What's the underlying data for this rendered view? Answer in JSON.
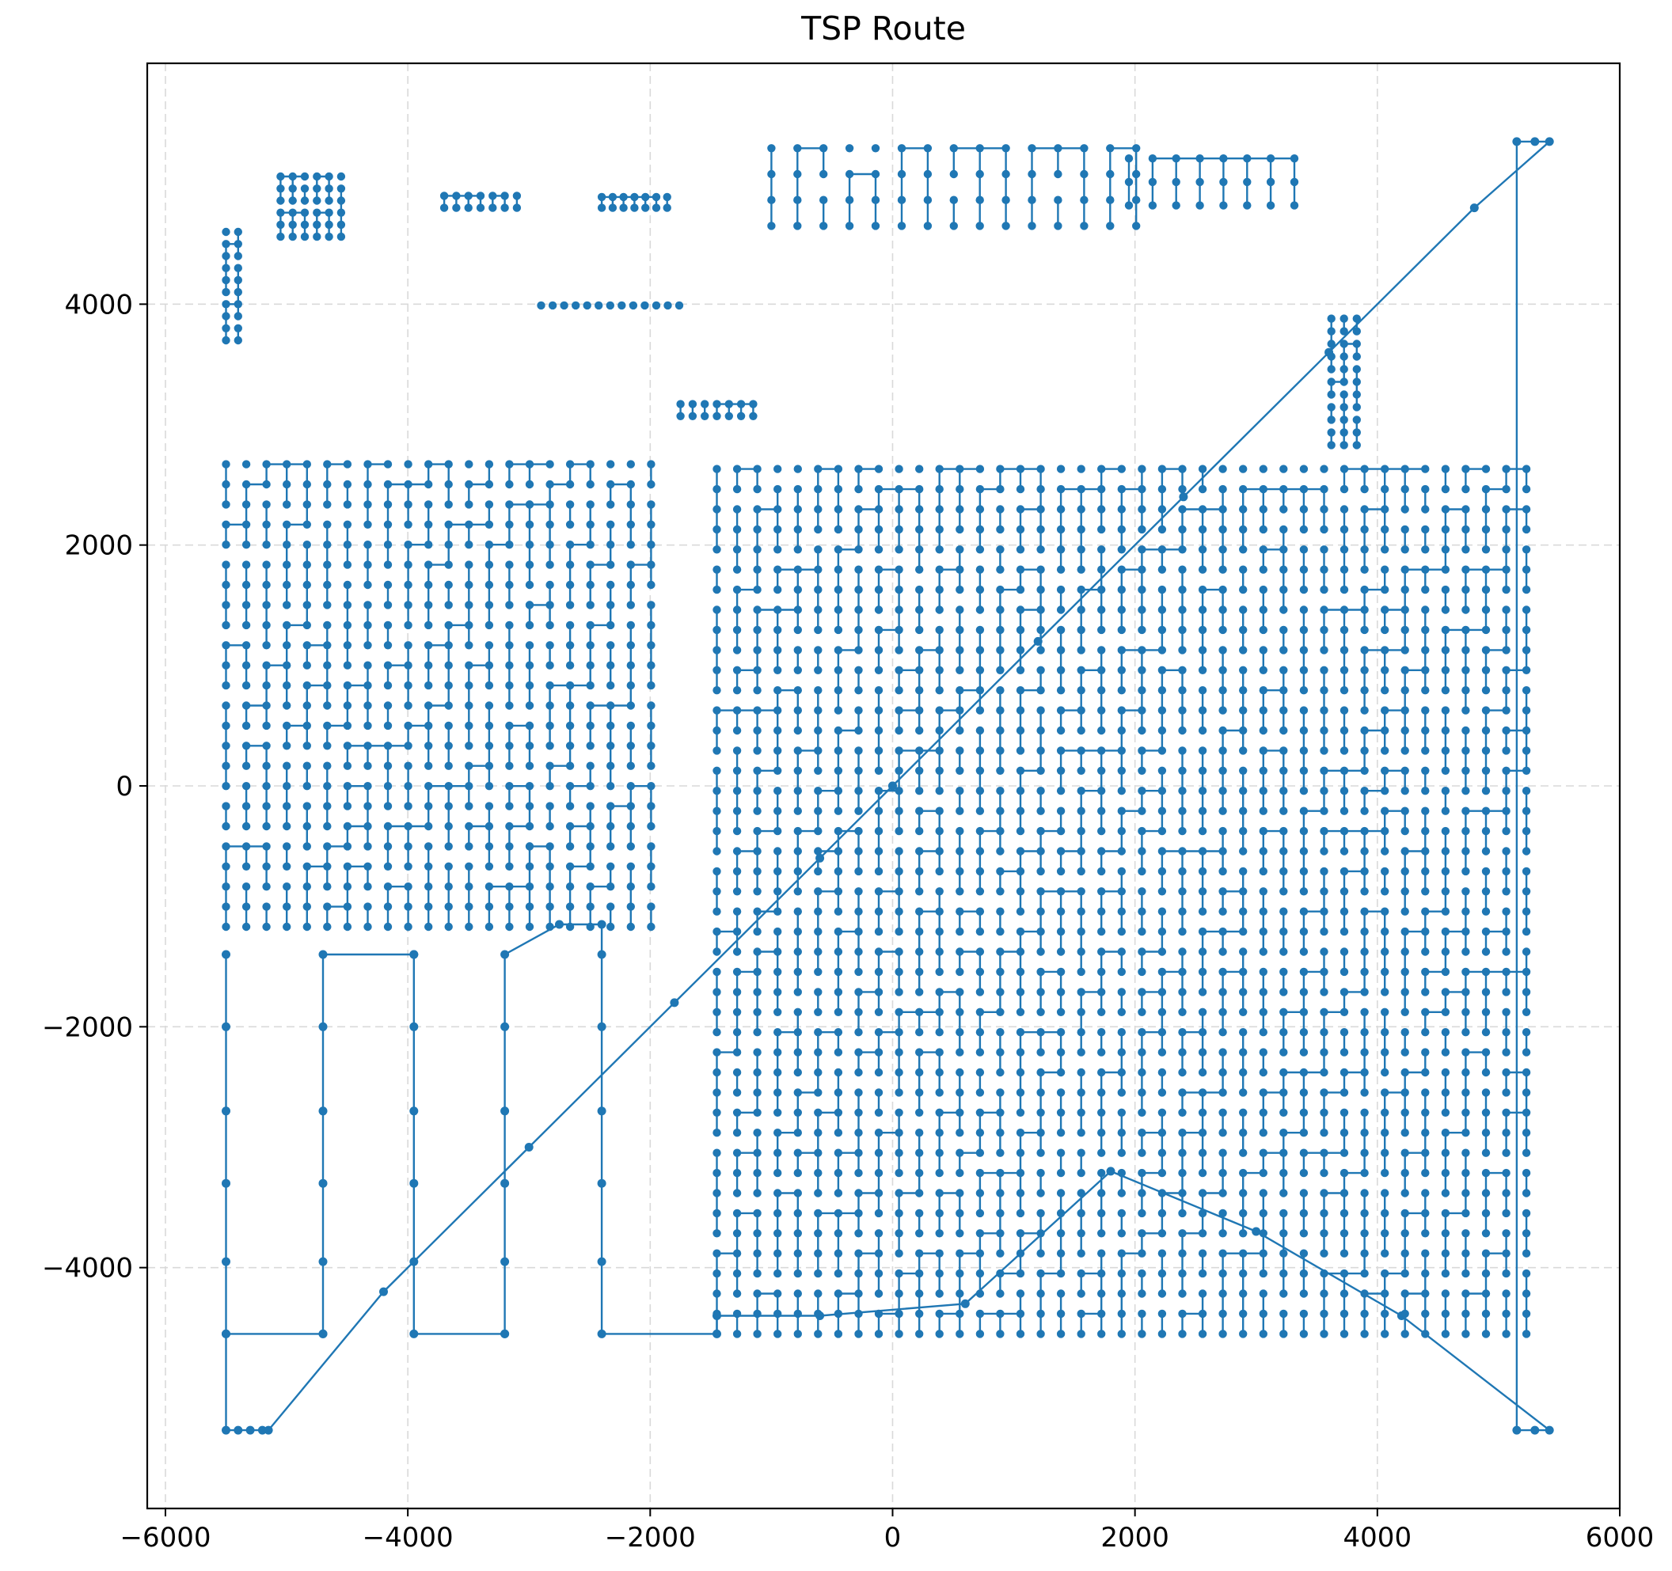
{
  "chart_data": {
    "type": "line",
    "title": "TSP Route",
    "xlabel": "",
    "ylabel": "",
    "xlim": [
      -6150,
      6000
    ],
    "ylim": [
      -6000,
      6000
    ],
    "xticks": [
      -6000,
      -4000,
      -2000,
      0,
      2000,
      4000,
      6000
    ],
    "yticks": [
      -4000,
      -2000,
      0,
      2000,
      4000
    ],
    "xtick_labels": [
      "−6000",
      "−4000",
      "−2000",
      "0",
      "2000",
      "4000",
      "6000"
    ],
    "ytick_labels": [
      "−4000",
      "−2000",
      "0",
      "2000",
      "4000"
    ],
    "grid": true,
    "color": "#1f77b4",
    "marker": "circle",
    "series": [
      {
        "x": [
          0,
          1200,
          2400,
          3600,
          4800,
          5420,
          5300,
          5150,
          5150,
          5300,
          5420,
          4200,
          3000,
          1800,
          600,
          -600,
          -1450,
          -1450,
          -2400,
          -2400,
          -2400,
          -2400,
          -2400,
          -2400,
          -2400,
          -2750,
          -3200,
          -3200,
          -3200,
          -3200,
          -3200,
          -3200,
          -3200,
          -3950,
          -3950,
          -3950,
          -3950,
          -3950,
          -3950,
          -3950,
          -4700,
          -4700,
          -4700,
          -4700,
          -4700,
          -4700,
          -4700,
          -5500,
          -5500,
          -5500,
          -5500,
          -5500,
          -5500,
          -5500,
          -5500,
          -5400,
          -5300,
          -5200,
          -5150,
          -4200,
          -3000,
          -1800,
          -600,
          0
        ],
        "y": [
          0,
          1200,
          2400,
          3600,
          4800,
          5350,
          5350,
          5350,
          -5350,
          -5350,
          -5350,
          -4400,
          -3700,
          -3200,
          -4300,
          -4400,
          -4400,
          -4550,
          -4550,
          -3950,
          -3300,
          -2700,
          -2000,
          -1400,
          -1150,
          -1150,
          -1400,
          -2000,
          -2700,
          -3300,
          -3950,
          -4550,
          -4550,
          -4550,
          -3950,
          -3300,
          -2700,
          -2000,
          -1400,
          -1400,
          -1400,
          -2000,
          -2700,
          -3300,
          -3950,
          -4550,
          -4550,
          -4550,
          -3950,
          -3300,
          -2700,
          -2000,
          -1400,
          -4550,
          -5350,
          -5350,
          -5350,
          -5350,
          -5350,
          -4200,
          -3000,
          -1800,
          -600,
          0
        ]
      }
    ]
  }
}
